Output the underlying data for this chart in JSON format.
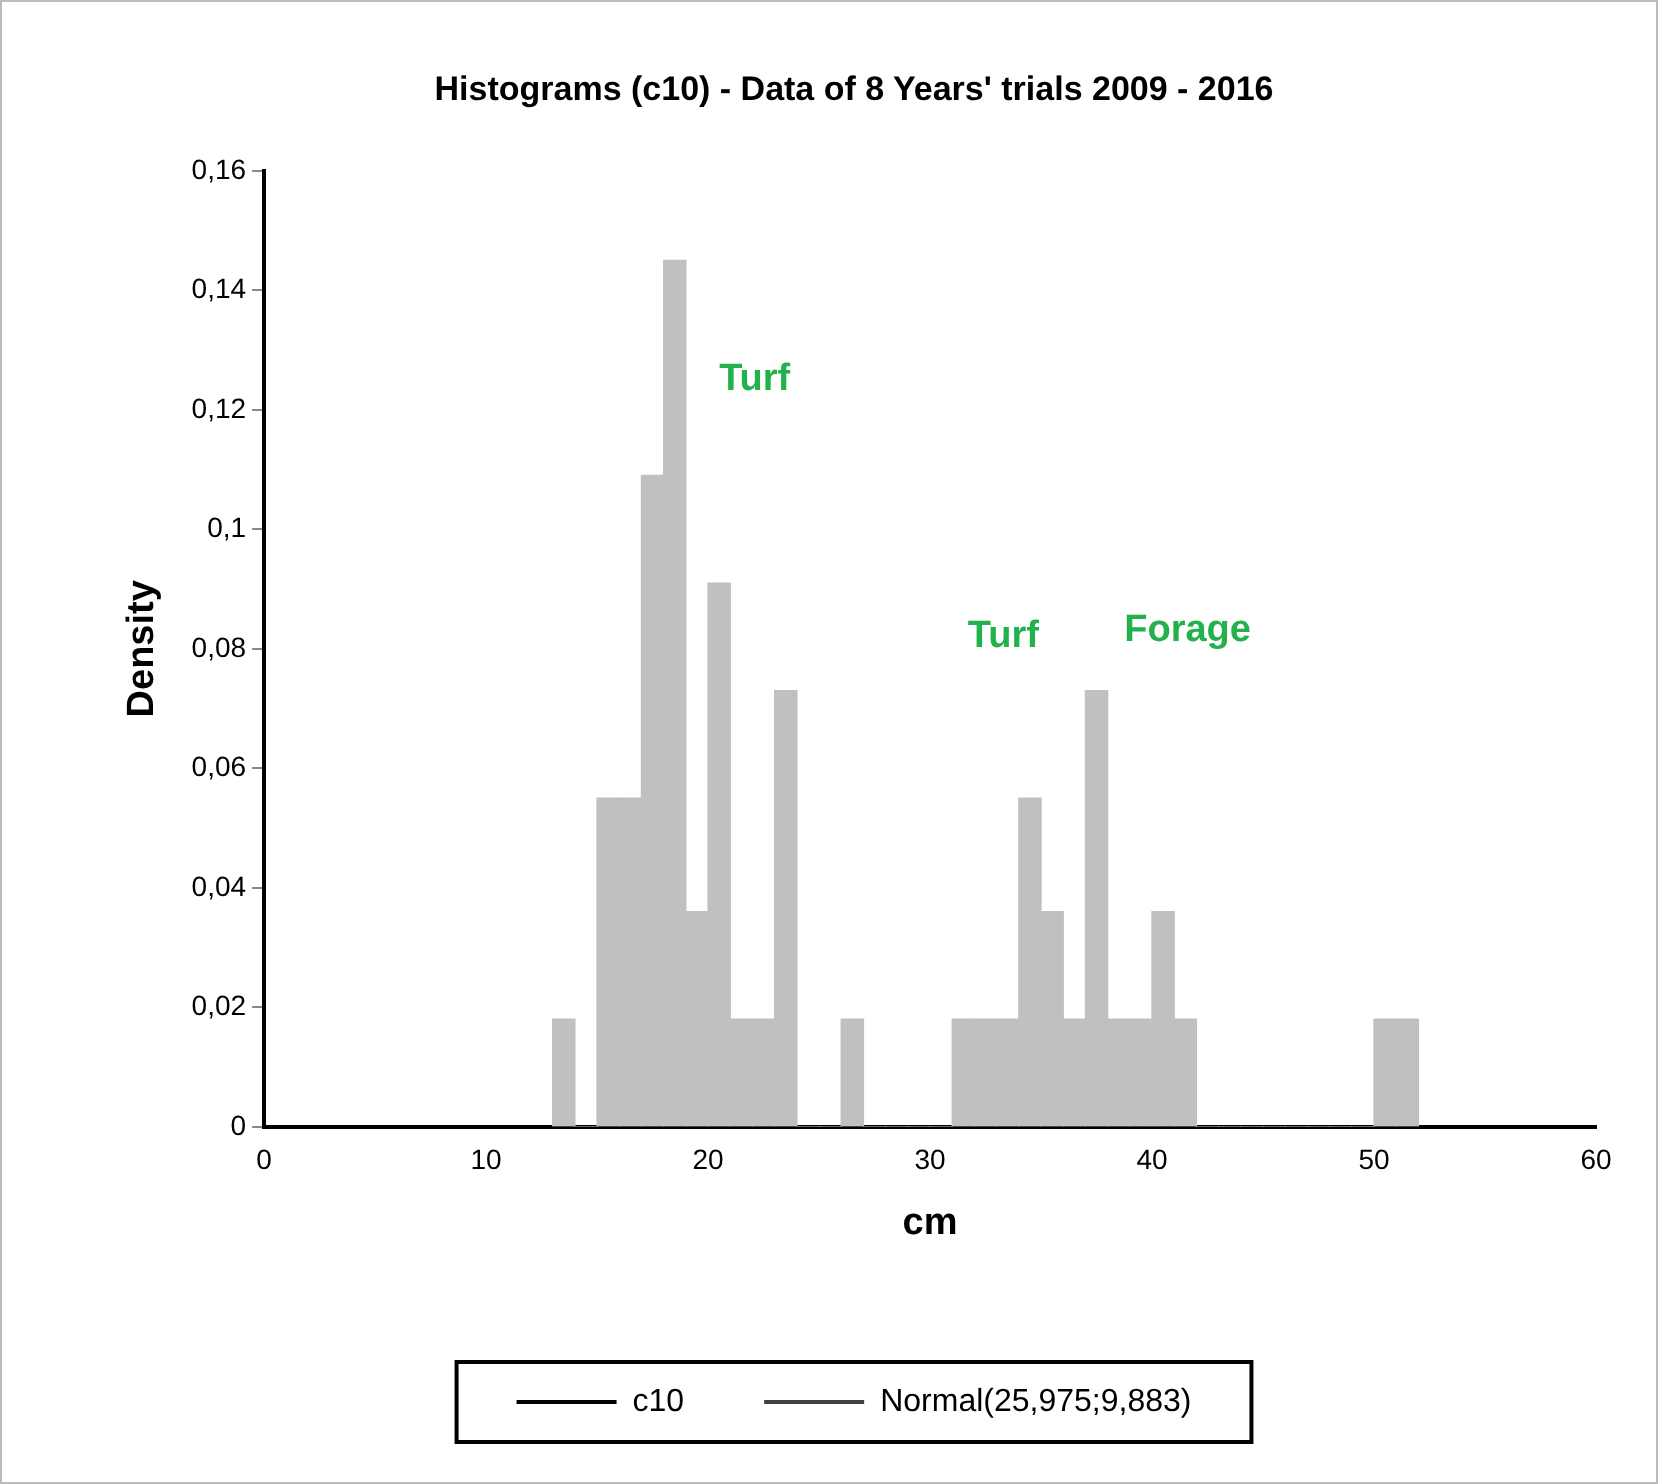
{
  "chart_data": {
    "type": "histogram",
    "title": "Histograms (c10) - Data of 8 Years' trials 2009 - 2016",
    "xlabel": "cm",
    "ylabel": "Density",
    "bins": [
      13,
      14,
      15,
      16,
      17,
      18,
      19,
      20,
      21,
      22,
      23,
      24,
      25,
      26,
      27,
      28,
      29,
      30,
      31,
      32,
      33,
      34,
      35,
      36,
      37,
      38,
      39,
      40,
      41,
      42,
      43,
      44,
      45,
      46,
      47,
      48,
      49,
      50,
      51,
      52
    ],
    "series": [
      {
        "name": "c10",
        "color": "#c0c0c0",
        "values": [
          0.018,
          0,
          0.055,
          0.055,
          0.109,
          0.145,
          0.036,
          0.091,
          0.018,
          0.018,
          0.073,
          0,
          0,
          0.018,
          0,
          0,
          0,
          0,
          0.018,
          0.018,
          0.018,
          0.055,
          0.036,
          0.018,
          0.073,
          0.018,
          0.018,
          0.036,
          0.018,
          0,
          0,
          0,
          0,
          0,
          0,
          0,
          0,
          0.018,
          0.018
        ]
      },
      {
        "name": "Normal(25,975;9,883)",
        "type": "line",
        "color": "#404040"
      }
    ],
    "xlim": [
      0,
      60
    ],
    "xticks": [
      0,
      10,
      20,
      30,
      40,
      50,
      60
    ],
    "ylim": [
      0,
      0.16
    ],
    "yticks": [
      {
        "value": 0,
        "label": "0"
      },
      {
        "value": 0.02,
        "label": "0,02"
      },
      {
        "value": 0.04,
        "label": "0,04"
      },
      {
        "value": 0.06,
        "label": "0,06"
      },
      {
        "value": 0.08,
        "label": "0,08"
      },
      {
        "value": 0.1,
        "label": "0,1"
      },
      {
        "value": 0.12,
        "label": "0,12"
      },
      {
        "value": 0.14,
        "label": "0,14"
      },
      {
        "value": 0.16,
        "label": "0,16"
      }
    ],
    "annotations": [
      "Turf",
      "Turf",
      "Forage"
    ],
    "legend": "bottom",
    "grid": false
  }
}
